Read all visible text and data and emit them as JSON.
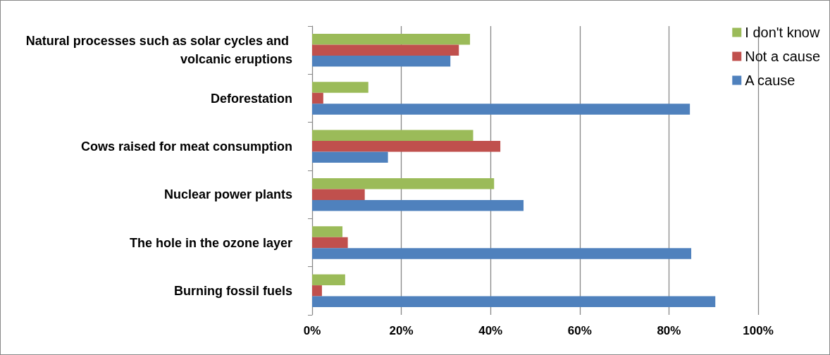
{
  "chart_data": {
    "type": "bar",
    "orientation": "horizontal",
    "categories": [
      "Natural processes such as solar cycles and volcanic eruptions",
      "Deforestation",
      "Cows raised for meat consumption",
      "Nuclear power plants",
      "The hole in the ozone layer",
      "Burning fossil fuels"
    ],
    "series": [
      {
        "name": "I don't know",
        "color": "#9bbb59",
        "values": [
          35.4,
          12.6,
          36.1,
          40.8,
          6.8,
          7.4
        ]
      },
      {
        "name": "Not a cause",
        "color": "#c0504d",
        "values": [
          32.9,
          2.5,
          42.2,
          11.8,
          8.0,
          2.2
        ]
      },
      {
        "name": "A cause",
        "color": "#4f81bd",
        "values": [
          31.0,
          84.7,
          17.0,
          47.4,
          85.0,
          90.4
        ]
      }
    ],
    "xlim": [
      0,
      100
    ],
    "xticks": [
      {
        "value": 0,
        "label": "0%"
      },
      {
        "value": 20,
        "label": "20%"
      },
      {
        "value": 40,
        "label": "40%"
      },
      {
        "value": 60,
        "label": "60%"
      },
      {
        "value": 80,
        "label": "80%"
      },
      {
        "value": 100,
        "label": "100%"
      }
    ],
    "grid": "x",
    "legend": "top right"
  }
}
